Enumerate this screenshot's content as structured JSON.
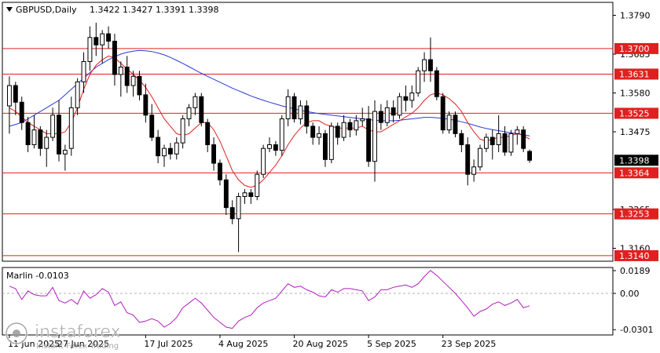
{
  "chart_data": {
    "type": "candlestick",
    "symbol_label": "GBPUSD,Daily",
    "ohlc_label": "1.3422 1.3427 1.3391 1.3398",
    "ylim": [
      1.3125,
      1.3825
    ],
    "price_ticks": [
      "1.3790",
      "1.3685",
      "1.3580",
      "1.3475",
      "1.3265",
      "1.3160"
    ],
    "x_labels": [
      {
        "index": 0,
        "label": "11 Jun 2025"
      },
      {
        "index": 8,
        "label": "27 Jun 2025"
      },
      {
        "index": 22,
        "label": "17 Jul 2025"
      },
      {
        "index": 34,
        "label": "4 Aug 2025"
      },
      {
        "index": 46,
        "label": "20 Aug 2025"
      },
      {
        "index": 58,
        "label": "5 Sep 2025"
      },
      {
        "index": 70,
        "label": "23 Sep 2025"
      }
    ],
    "level_lines": [
      {
        "value": 1.37,
        "label": "1.3700"
      },
      {
        "value": 1.3631,
        "label": "1.3631"
      },
      {
        "value": 1.3525,
        "label": "1.3525"
      },
      {
        "value": 1.3364,
        "label": "1.3364"
      },
      {
        "value": 1.3253,
        "label": "1.3253"
      },
      {
        "value": 1.314,
        "label": "1.3140"
      }
    ],
    "current_price": {
      "value": 1.3398,
      "label": "1.3398"
    },
    "candles": [
      [
        1.3545,
        1.3625,
        1.347,
        1.36
      ],
      [
        1.36,
        1.361,
        1.352,
        1.3555
      ],
      [
        1.3555,
        1.357,
        1.348,
        1.35
      ],
      [
        1.35,
        1.3515,
        1.342,
        1.344
      ],
      [
        1.344,
        1.352,
        1.343,
        1.348
      ],
      [
        1.348,
        1.349,
        1.341,
        1.343
      ],
      [
        1.343,
        1.348,
        1.338,
        1.346
      ],
      [
        1.346,
        1.354,
        1.345,
        1.352
      ],
      [
        1.352,
        1.356,
        1.3395,
        1.3415
      ],
      [
        1.3415,
        1.344,
        1.337,
        1.3425
      ],
      [
        1.343,
        1.357,
        1.341,
        1.354
      ],
      [
        1.354,
        1.362,
        1.352,
        1.361
      ],
      [
        1.361,
        1.369,
        1.358,
        1.3665
      ],
      [
        1.3665,
        1.376,
        1.364,
        1.373
      ],
      [
        1.373,
        1.377,
        1.368,
        1.371
      ],
      [
        1.371,
        1.375,
        1.366,
        1.374
      ],
      [
        1.374,
        1.376,
        1.37,
        1.372
      ],
      [
        1.372,
        1.374,
        1.36,
        1.363
      ],
      [
        1.363,
        1.3665,
        1.357,
        1.365
      ],
      [
        1.365,
        1.368,
        1.358,
        1.36
      ],
      [
        1.36,
        1.364,
        1.357,
        1.3625
      ],
      [
        1.3625,
        1.364,
        1.356,
        1.3575
      ],
      [
        1.3575,
        1.3605,
        1.35,
        1.352
      ],
      [
        1.352,
        1.355,
        1.345,
        1.346
      ],
      [
        1.346,
        1.348,
        1.339,
        1.341
      ],
      [
        1.341,
        1.344,
        1.338,
        1.343
      ],
      [
        1.343,
        1.3445,
        1.34,
        1.3415
      ],
      [
        1.3415,
        1.346,
        1.34,
        1.3445
      ],
      [
        1.3445,
        1.352,
        1.343,
        1.351
      ],
      [
        1.351,
        1.355,
        1.349,
        1.354
      ],
      [
        1.354,
        1.358,
        1.352,
        1.357
      ],
      [
        1.357,
        1.358,
        1.349,
        1.35
      ],
      [
        1.35,
        1.351,
        1.342,
        1.344
      ],
      [
        1.344,
        1.346,
        1.337,
        1.339
      ],
      [
        1.339,
        1.34,
        1.333,
        1.3345
      ],
      [
        1.3345,
        1.336,
        1.325,
        1.327
      ],
      [
        1.327,
        1.329,
        1.3225,
        1.324
      ],
      [
        1.324,
        1.331,
        1.315,
        1.33
      ],
      [
        1.33,
        1.332,
        1.328,
        1.331
      ],
      [
        1.331,
        1.332,
        1.328,
        1.33
      ],
      [
        1.33,
        1.337,
        1.329,
        1.336
      ],
      [
        1.336,
        1.344,
        1.335,
        1.343
      ],
      [
        1.343,
        1.346,
        1.342,
        1.344
      ],
      [
        1.344,
        1.345,
        1.341,
        1.3425
      ],
      [
        1.3425,
        1.352,
        1.341,
        1.351
      ],
      [
        1.351,
        1.359,
        1.349,
        1.357
      ],
      [
        1.357,
        1.358,
        1.35,
        1.351
      ],
      [
        1.351,
        1.356,
        1.3495,
        1.3545
      ],
      [
        1.3545,
        1.356,
        1.347,
        1.349
      ],
      [
        1.349,
        1.35,
        1.344,
        1.346
      ],
      [
        1.346,
        1.349,
        1.344,
        1.347
      ],
      [
        1.347,
        1.348,
        1.338,
        1.34
      ],
      [
        1.34,
        1.35,
        1.339,
        1.349
      ],
      [
        1.349,
        1.35,
        1.344,
        1.346
      ],
      [
        1.346,
        1.352,
        1.345,
        1.35
      ],
      [
        1.35,
        1.351,
        1.346,
        1.348
      ],
      [
        1.348,
        1.352,
        1.3465,
        1.3505
      ],
      [
        1.3505,
        1.354,
        1.349,
        1.351
      ],
      [
        1.351,
        1.3545,
        1.338,
        1.3395
      ],
      [
        1.3395,
        1.356,
        1.334,
        1.353
      ],
      [
        1.353,
        1.355,
        1.348,
        1.35
      ],
      [
        1.35,
        1.356,
        1.349,
        1.354
      ],
      [
        1.354,
        1.356,
        1.35,
        1.352
      ],
      [
        1.352,
        1.358,
        1.351,
        1.357
      ],
      [
        1.357,
        1.36,
        1.353,
        1.356
      ],
      [
        1.356,
        1.36,
        1.354,
        1.358
      ],
      [
        1.358,
        1.365,
        1.357,
        1.364
      ],
      [
        1.364,
        1.369,
        1.361,
        1.367
      ],
      [
        1.367,
        1.373,
        1.361,
        1.364
      ],
      [
        1.364,
        1.365,
        1.356,
        1.357
      ],
      [
        1.357,
        1.358,
        1.347,
        1.348
      ],
      [
        1.348,
        1.353,
        1.347,
        1.352
      ],
      [
        1.352,
        1.353,
        1.346,
        1.347
      ],
      [
        1.347,
        1.348,
        1.342,
        1.344
      ],
      [
        1.344,
        1.346,
        1.333,
        1.336
      ],
      [
        1.336,
        1.34,
        1.334,
        1.338
      ],
      [
        1.338,
        1.344,
        1.337,
        1.343
      ],
      [
        1.343,
        1.347,
        1.342,
        1.346
      ],
      [
        1.346,
        1.348,
        1.34,
        1.344
      ],
      [
        1.344,
        1.352,
        1.342,
        1.347
      ],
      [
        1.347,
        1.349,
        1.341,
        1.342
      ],
      [
        1.342,
        1.348,
        1.341,
        1.347
      ],
      [
        1.347,
        1.349,
        1.344,
        1.348
      ],
      [
        1.348,
        1.349,
        1.342,
        1.343
      ],
      [
        1.3422,
        1.3427,
        1.3391,
        1.3398
      ]
    ],
    "ma_fast": [
      1.354,
      1.353,
      1.3515,
      1.35,
      1.349,
      1.348,
      1.347,
      1.347,
      1.347,
      1.3475,
      1.35,
      1.354,
      1.359,
      1.363,
      1.3655,
      1.367,
      1.368,
      1.3675,
      1.366,
      1.3645,
      1.363,
      1.3615,
      1.3595,
      1.357,
      1.354,
      1.351,
      1.349,
      1.347,
      1.3465,
      1.347,
      1.3485,
      1.35,
      1.35,
      1.348,
      1.345,
      1.341,
      1.337,
      1.3345,
      1.333,
      1.3325,
      1.333,
      1.3345,
      1.3365,
      1.3385,
      1.341,
      1.344,
      1.3465,
      1.3485,
      1.35,
      1.3505,
      1.3505,
      1.3495,
      1.349,
      1.3485,
      1.3485,
      1.3485,
      1.3485,
      1.349,
      1.348,
      1.3475,
      1.3475,
      1.3485,
      1.3495,
      1.3505,
      1.3515,
      1.3525,
      1.354,
      1.356,
      1.3575,
      1.358,
      1.3575,
      1.3565,
      1.355,
      1.353,
      1.35,
      1.3475,
      1.3455,
      1.345,
      1.3455,
      1.346,
      1.346,
      1.3465,
      1.347,
      1.3465,
      1.3455
    ],
    "ma_slow": [
      1.349,
      1.3495,
      1.35,
      1.351,
      1.352,
      1.353,
      1.354,
      1.355,
      1.356,
      1.3575,
      1.359,
      1.3605,
      1.362,
      1.3635,
      1.365,
      1.366,
      1.367,
      1.3678,
      1.3685,
      1.369,
      1.3693,
      1.3695,
      1.3694,
      1.3692,
      1.3688,
      1.3683,
      1.3676,
      1.3668,
      1.366,
      1.3651,
      1.3642,
      1.3633,
      1.3625,
      1.3617,
      1.3609,
      1.3601,
      1.3593,
      1.3586,
      1.3579,
      1.3572,
      1.3566,
      1.356,
      1.3555,
      1.355,
      1.3545,
      1.3541,
      1.3537,
      1.3533,
      1.353,
      1.3527,
      1.3524,
      1.3522,
      1.352,
      1.3518,
      1.3516,
      1.3514,
      1.3512,
      1.351,
      1.3508,
      1.3506,
      1.3505,
      1.3505,
      1.3505,
      1.3506,
      1.3508,
      1.351,
      1.3512,
      1.3514,
      1.3514,
      1.3513,
      1.3511,
      1.3509,
      1.3506,
      1.3502,
      1.3498,
      1.3493,
      1.3488,
      1.3484,
      1.3481,
      1.3478,
      1.3475,
      1.3472,
      1.347,
      1.3467,
      1.3464
    ],
    "marlin": {
      "label": "Marlin -0.0103",
      "ylim": [
        -0.0345,
        0.0215
      ],
      "ticks": [
        "0.0189",
        "0.00",
        "-0.0301"
      ],
      "values": [
        0.006,
        0.004,
        -0.005,
        0.002,
        -0.001,
        -0.002,
        -0.002,
        0.005,
        -0.006,
        -0.008,
        -0.005,
        -0.009,
        0.002,
        -0.004,
        -0.001,
        0.004,
        0.001,
        -0.01,
        -0.007,
        -0.016,
        -0.018,
        -0.024,
        -0.023,
        -0.021,
        -0.023,
        -0.028,
        -0.025,
        -0.02,
        -0.012,
        -0.008,
        -0.004,
        -0.008,
        -0.014,
        -0.02,
        -0.024,
        -0.028,
        -0.029,
        -0.023,
        -0.02,
        -0.018,
        -0.012,
        -0.008,
        -0.006,
        -0.004,
        0.002,
        0.008,
        0.005,
        0.006,
        0.003,
        0.001,
        -0.002,
        -0.003,
        0.003,
        0.001,
        0.004,
        0.004,
        0.003,
        0.002,
        -0.006,
        -0.003,
        0.003,
        0.003,
        0.005,
        0.006,
        0.007,
        0.005,
        0.008,
        0.014,
        0.019,
        0.015,
        0.01,
        0.005,
        0.0,
        -0.006,
        -0.012,
        -0.019,
        -0.015,
        -0.013,
        -0.009,
        -0.007,
        -0.01,
        -0.008,
        -0.005,
        -0.012,
        -0.0103
      ]
    },
    "colors": {
      "bull": "#ffffff",
      "bear": "#000000",
      "ma_fast": "#e02020",
      "ma_slow": "#2a3ad8",
      "level": "#e02020",
      "marlin": "#b21ec0",
      "grid_dashed": "#b0b0b0",
      "price_box": "#000000"
    }
  },
  "watermark": {
    "brand": "instaforex",
    "tagline": "Instant Forex Trading"
  }
}
